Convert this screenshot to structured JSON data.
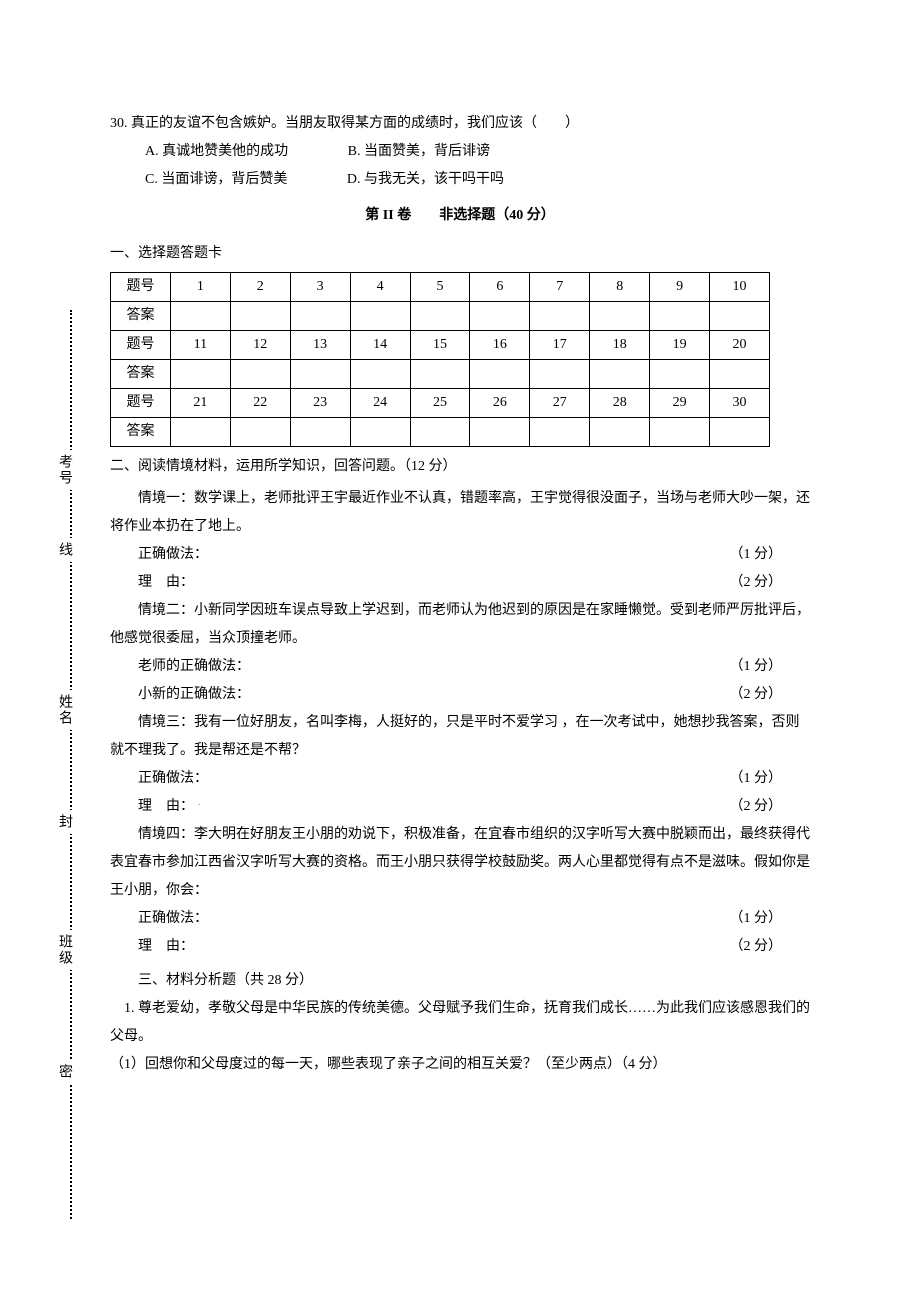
{
  "question30": {
    "stem": "30. 真正的友谊不包含嫉妒。当朋友取得某方面的成绩时，我们应该（　　）",
    "optA": "A. 真诚地赞美他的成功",
    "optB": "B. 当面赞美，背后诽谤",
    "optC": "C. 当面诽谤，背后赞美",
    "optD": "D. 与我无关，该干吗干吗"
  },
  "partII_title": "第 II 卷　　非选择题（40 分）",
  "sectionI_heading": "一、选择题答题卡",
  "grid": {
    "row_label_q": "题号",
    "row_label_a": "答案",
    "r1": [
      "1",
      "2",
      "3",
      "4",
      "5",
      "6",
      "7",
      "8",
      "9",
      "10"
    ],
    "r2": [
      "11",
      "12",
      "13",
      "14",
      "15",
      "16",
      "17",
      "18",
      "19",
      "20"
    ],
    "r3": [
      "21",
      "22",
      "23",
      "24",
      "25",
      "26",
      "27",
      "28",
      "29",
      "30"
    ]
  },
  "sectionII_heading": "二、阅读情境材料，运用所学知识，回答问题。（12 分）",
  "sc1_text": "情境一：数学课上，老师批评王宇最近作业不认真，错题率高，王宇觉得很没面子，当场与老师大吵一架，还将作业本扔在了地上。",
  "sc2_text": "情境二：小新同学因班车误点导致上学迟到，而老师认为他迟到的原因是在家睡懒觉。受到老师严厉批评后，他感觉很委屈，当众顶撞老师。",
  "sc3_text": "情境三：我有一位好朋友，名叫李梅，人挺好的，只是平时不爱学习 ，在一次考试中，她想抄我答案，否则就不理我了。我是帮还是不帮？",
  "sc4_text": "情境四：李大明在好朋友王小朋的劝说下，积极准备，在宜春市组织的汉字听写大赛中脱颖而出，最终获得代表宜春市参加江西省汉字听写大赛的资格。而王小朋只获得学校鼓励奖。两人心里都觉得有点不是滋味。假如你是王小朋，你会：",
  "labels": {
    "correct": "正确做法：",
    "reason_label_a": "理",
    "reason_label_b": "由：",
    "teacher_correct": "老师的正确做法：",
    "student_correct": "小新的正确做法："
  },
  "pts": {
    "one": "（1 分）",
    "two": "（2 分）"
  },
  "sectionIII_heading": "三、材料分析题（共 28 分）",
  "mat1_intro": "1. 尊老爱幼，孝敬父母是中华民族的传统美德。父母赋予我们生命，抚育我们成长……为此我们应该感恩我们的父母。",
  "mat1_q1": "（1）回想你和父母度过的每一天，哪些表现了亲子之间的相互关爱？（至少两点）（4 分）",
  "margin": {
    "kaohao": "考号",
    "xian": "线",
    "xingming": "姓名",
    "feng": "封",
    "banji": "班级",
    "mi": "密"
  }
}
